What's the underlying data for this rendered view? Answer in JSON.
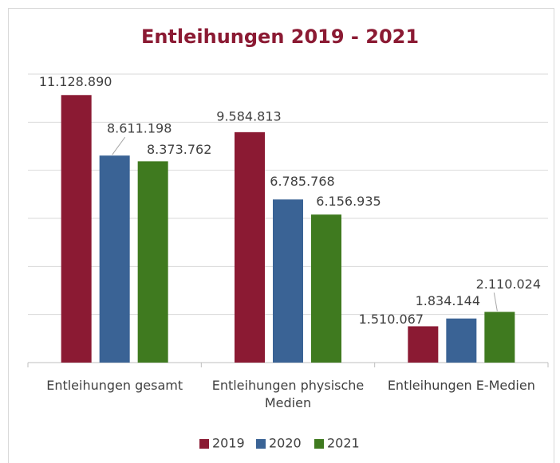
{
  "chart_data": {
    "type": "bar",
    "title": "Entleihungen 2019 - 2021",
    "categories": [
      "Entleihungen gesamt",
      "Entleihungen physische Medien",
      "Entleihungen E-Medien"
    ],
    "series": [
      {
        "name": "2019",
        "color": "#8b1a33",
        "values": [
          11128890,
          9584813,
          1510067
        ],
        "value_labels": [
          "11.128.890",
          "9.584.813",
          "1.510.067"
        ]
      },
      {
        "name": "2020",
        "color": "#3a6395",
        "values": [
          8611198,
          6785768,
          1834144
        ],
        "value_labels": [
          "8.611.198",
          "6.785.768",
          "1.834.144"
        ]
      },
      {
        "name": "2021",
        "color": "#3f7a1f",
        "values": [
          8373762,
          6156935,
          2110024
        ],
        "value_labels": [
          "8.373.762",
          "6.156.935",
          "2.110.024"
        ]
      }
    ],
    "ylim": [
      0,
      12000000
    ],
    "yticks": [
      0,
      2000000,
      4000000,
      6000000,
      8000000,
      10000000,
      12000000
    ],
    "grid": true,
    "legend": "bottom"
  }
}
